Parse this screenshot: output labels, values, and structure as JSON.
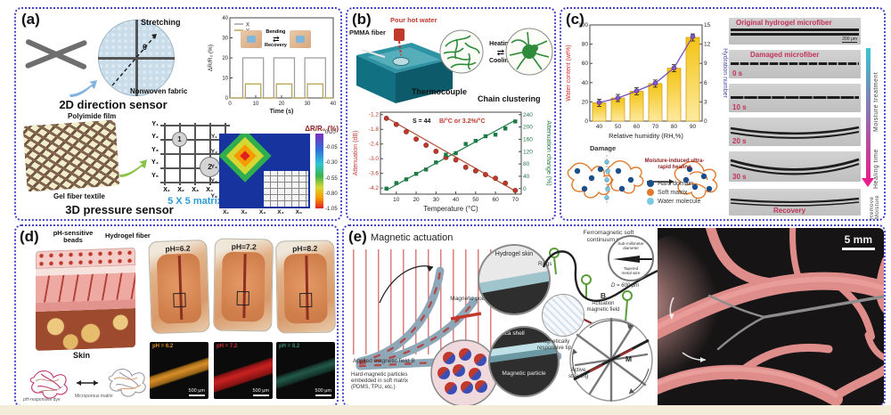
{
  "panel_a": {
    "label": "(a)",
    "stretching": "Stretching",
    "theta": "θ",
    "nonwoven_fabric": "Nonwoven fabric",
    "caption_2d": "2D direction sensor",
    "polyimide_film": "Polyimide film",
    "gel_fiber_textile": "Gel fiber textile",
    "matrix_label": "5 X 5 matrix",
    "caption_3d": "3D pressure sensor",
    "node_1": "1",
    "node_2": "2",
    "bending": "Bending",
    "recovery": "Recovery"
  },
  "panel_b": {
    "label": "(b)",
    "pour_hot_water": "Pour hot water",
    "pmma_fiber": "PMMA fiber",
    "thermocouple": "Thermocouple",
    "heating": "Heating",
    "cooling": "Cooling",
    "chain_clustering": "Chain clustering"
  },
  "panel_c": {
    "label": "(c)",
    "damage": "Damage",
    "healing_arrow": "Moisture-induced ultra-rapid healing",
    "legend": [
      {
        "label": "Hard domain",
        "color": "#1b4f8a"
      },
      {
        "label": "Soft matrix",
        "color": "#e07a2e"
      },
      {
        "label": "Water molecule",
        "color": "#7ec8e3"
      }
    ],
    "micrographs": [
      {
        "title": "Original hydrogel microfiber",
        "scale": "200 μm"
      },
      {
        "title": "Damaged microfiber",
        "time": "0 s"
      },
      {
        "time": "10 s"
      },
      {
        "time": "20 s"
      },
      {
        "time": "30 s"
      },
      {
        "title": "Recovery"
      }
    ],
    "moisture_treatment": "Moisture treatment",
    "healing_time": "Healing time",
    "remove_moisture": "Remove Moisture"
  },
  "panel_d": {
    "label": "(d)",
    "ph_beads": "pH-sensitive beads",
    "hydrogel_fiber": "Hydrogel fiber",
    "skin": "Skin",
    "dye": "pH-responsive dye",
    "matrix": "Microporous matrix",
    "photos": [
      {
        "ph": "pH=6.2"
      },
      {
        "ph": "pH=7.2"
      },
      {
        "ph": "pH=8.2"
      }
    ],
    "micros": [
      {
        "ph": "pH = 6.2",
        "scale": "500 μm",
        "color": "#d98f2a"
      },
      {
        "ph": "pH = 7.2",
        "scale": "500 μm",
        "color": "#cc2222"
      },
      {
        "ph": "pH = 8.2",
        "scale": "500 μm",
        "color": "#3a8a6a"
      }
    ]
  },
  "panel_e": {
    "label": "(e)",
    "title": "Magnetic actuation",
    "hydrogel_skin": "Hydrogel skin",
    "magnetic_polarities": "Magnetic polarities M",
    "applied_field": "Applied magnetic field B",
    "particles_caption_1": "Hard-magnetic particles",
    "particles_caption_2": "embedded in soft matrix",
    "particles_caption_3": "(PDMS, TPU, etc.)",
    "silica_shell": "Silica shell",
    "magnetic_particle": "Magnetic particle",
    "continuum_robot_1": "Ferromagnetic soft",
    "continuum_robot_2": "continuum robot",
    "rings": "Rings",
    "submm_1": "Sub-millimeter",
    "submm_2": "diameter",
    "tapered_1": "Tapered",
    "tapered_2": "metal wire",
    "diameter": "D = 600 μm",
    "b_field": "B",
    "actuation_field_1": "Actuation",
    "actuation_field_2": "magnetic field",
    "responsive_tip_1": "Magnetically",
    "responsive_tip_2": "responsive tip",
    "active_steering_1": "Active",
    "active_steering_2": "steering",
    "m_label": "M",
    "scale_bar": "5 mm"
  },
  "chart_data": [
    {
      "id": "bend-chart",
      "type": "line",
      "xlabel": "Time (s)",
      "ylabel": "ΔR/R₀ (%)",
      "xlim": [
        0,
        40
      ],
      "ylim": [
        0,
        40
      ],
      "xticks": [
        0,
        10,
        20,
        30,
        40
      ],
      "yticks": [
        0,
        10,
        20,
        30,
        40
      ],
      "grid": false,
      "legend_position": "top-left",
      "series": [
        {
          "name": "X",
          "color": "#9a9a9a",
          "points": [
            [
              0,
              0
            ],
            [
              5,
              0
            ],
            [
              5,
              20
            ],
            [
              13,
              20
            ],
            [
              13,
              0
            ],
            [
              17,
              0
            ],
            [
              17,
              20
            ],
            [
              25,
              20
            ],
            [
              25,
              0
            ],
            [
              29,
              0
            ],
            [
              29,
              20
            ],
            [
              37,
              20
            ],
            [
              37,
              0
            ],
            [
              40,
              0
            ]
          ]
        },
        {
          "name": "Y",
          "color": "#b5a04c",
          "points": [
            [
              0,
              0
            ],
            [
              6,
              0
            ],
            [
              6,
              7
            ],
            [
              12,
              7
            ],
            [
              12,
              0
            ],
            [
              18,
              0
            ],
            [
              18,
              7
            ],
            [
              24,
              7
            ],
            [
              24,
              0
            ],
            [
              30,
              0
            ],
            [
              30,
              7
            ],
            [
              36,
              7
            ],
            [
              36,
              0
            ],
            [
              40,
              0
            ]
          ]
        }
      ]
    },
    {
      "id": "pressure-heatmap",
      "type": "heatmap",
      "label": "ΔR/R₀ (%)",
      "rows": [
        "Y₁",
        "Y₂",
        "Y₃",
        "Y₄",
        "Y₅"
      ],
      "cols": [
        "X₁",
        "X₂",
        "X₃",
        "X₄",
        "X₅"
      ],
      "colorbar_ticks": [
        0.2,
        -0.05,
        -0.3,
        -0.55,
        -0.8,
        -1.05
      ],
      "hotspot": {
        "row": "Y₂",
        "col": "X₂",
        "peak_value": -1.05,
        "background_value": -0.05
      }
    },
    {
      "id": "atten-chart",
      "type": "scatter",
      "xlabel": "Temperature (°C)",
      "ylabel_left": "Attenuation (dB)",
      "ylabel_right": "Attenuation change (%)",
      "annotation_black": "S = 44",
      "annotation_red": "B/°C or 3.2%/°C",
      "xlim": [
        2,
        73
      ],
      "xticks": [
        10,
        20,
        30,
        40,
        50,
        60,
        70
      ],
      "left": {
        "color": "#c0392b",
        "ylim": [
          -4.45,
          -1.1
        ],
        "ticks": [
          -1.2,
          -1.8,
          -2.4,
          -3.0,
          -3.6,
          -4.2
        ],
        "x": [
          5,
          10,
          15,
          20,
          25,
          30,
          35,
          40,
          45,
          50,
          55,
          60,
          65,
          70
        ],
        "y": [
          -1.35,
          -1.6,
          -1.9,
          -2.2,
          -2.45,
          -2.7,
          -2.95,
          -3.05,
          -3.35,
          -3.5,
          -3.65,
          -3.8,
          -4.0,
          -4.3
        ]
      },
      "right": {
        "color": "#1e7a45",
        "ylim": [
          -18,
          248
        ],
        "ticks": [
          0,
          40,
          80,
          120,
          160,
          200,
          240
        ],
        "x": [
          5,
          10,
          15,
          20,
          25,
          30,
          35,
          40,
          45,
          50,
          55,
          60,
          65,
          70
        ],
        "y": [
          0,
          18,
          30,
          48,
          62,
          85,
          110,
          115,
          145,
          155,
          170,
          175,
          195,
          218
        ]
      }
    },
    {
      "id": "humidity-chart",
      "type": "bar",
      "xlabel": "Relative humidity (RH,%)",
      "ylabel_left": "Water content (wt%)",
      "ylabel_right": "Hydration number",
      "categories": [
        40,
        50,
        60,
        70,
        80,
        90
      ],
      "bar_values": [
        19,
        24,
        31,
        39,
        55,
        87
      ],
      "line_values": [
        2.9,
        3.6,
        4.7,
        5.9,
        8.3,
        13.2
      ],
      "ylim_left": [
        0,
        100
      ],
      "yticks_left": [
        0,
        20,
        40,
        60,
        80,
        100
      ],
      "ylim_right": [
        0,
        15
      ],
      "yticks_right": [
        0,
        3,
        6,
        9,
        12,
        15
      ],
      "bar_color": "#f3c313",
      "line_color": "#7a4fb5"
    }
  ]
}
